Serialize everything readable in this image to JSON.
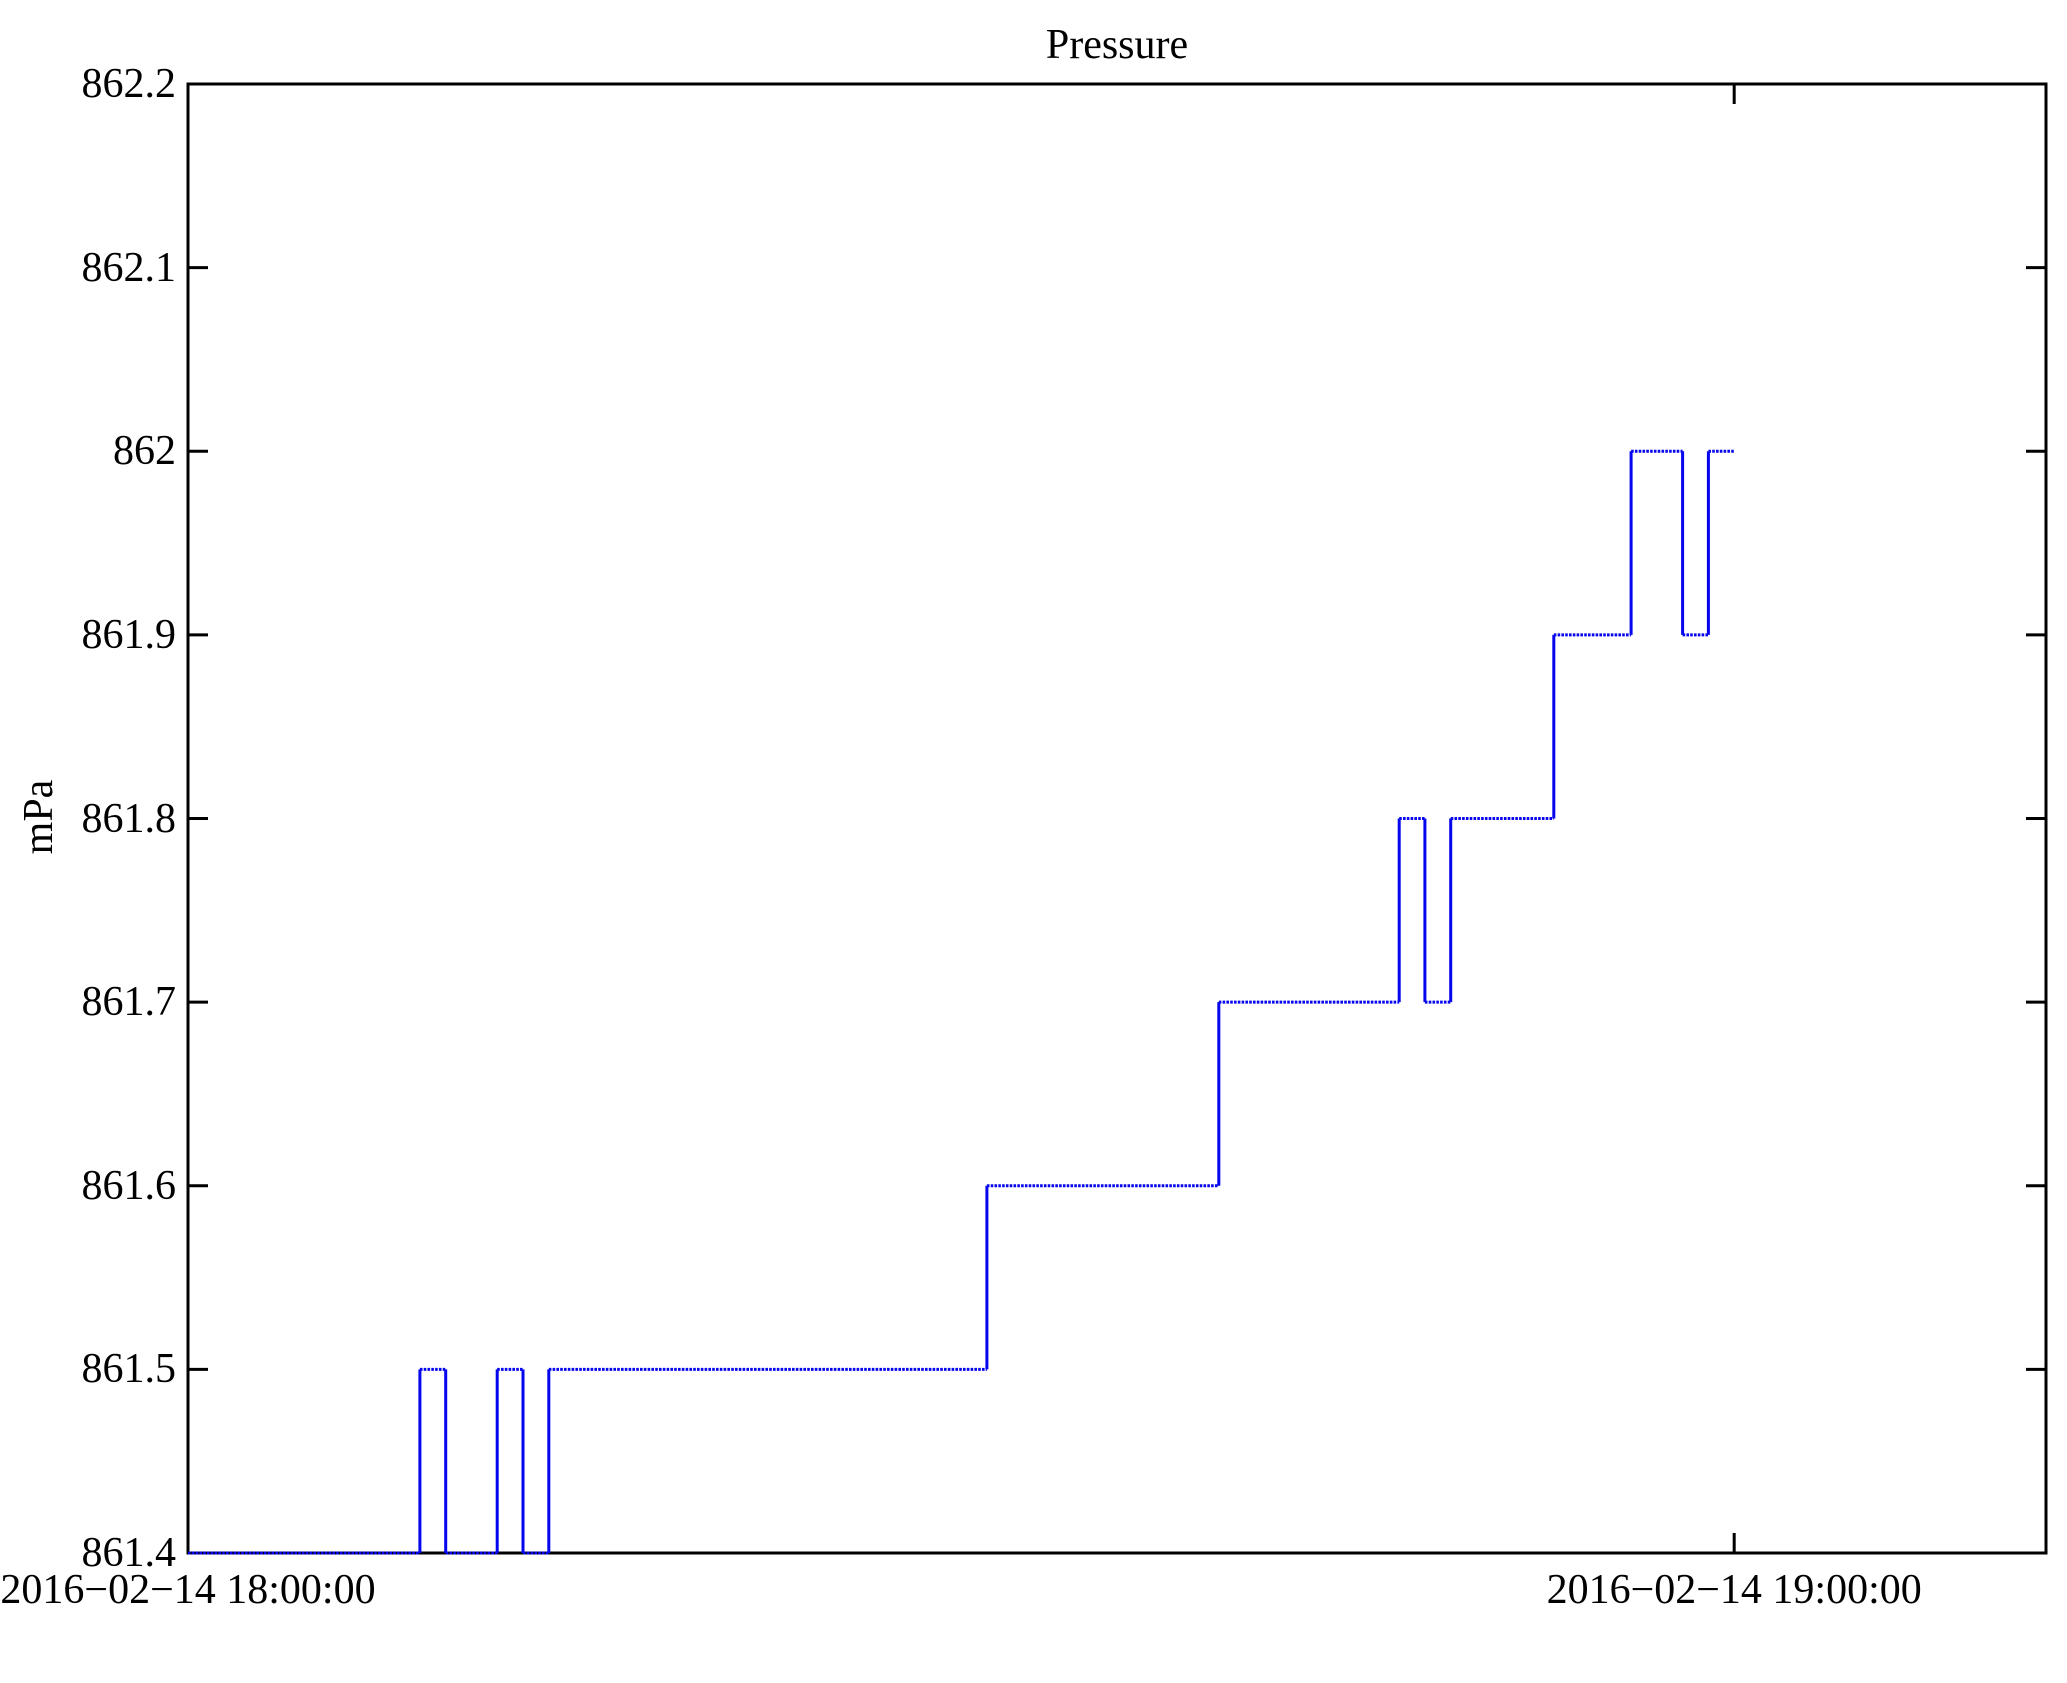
{
  "chart_data": {
    "type": "line",
    "subtype": "step-post",
    "title": "Pressure",
    "ylabel": "mPa",
    "xlabel": "",
    "ylim": [
      861.4,
      862.2
    ],
    "xlim_minutes_after_1800": [
      0,
      72.1
    ],
    "grid": false,
    "legend": "none",
    "line_color": "#0505ee",
    "frame_color": "#000000",
    "yticks": [
      {
        "label": "862.2",
        "value": 862.2
      },
      {
        "label": "862.1",
        "value": 862.1
      },
      {
        "label": "862",
        "value": 862.0
      },
      {
        "label": "861.9",
        "value": 861.9
      },
      {
        "label": "861.8",
        "value": 861.8
      },
      {
        "label": "861.7",
        "value": 861.7
      },
      {
        "label": "861.6",
        "value": 861.6
      },
      {
        "label": "861.5",
        "value": 861.5
      },
      {
        "label": "861.4",
        "value": 861.4
      }
    ],
    "xticks": [
      {
        "label": "2016−02−14 18:00:00",
        "minutes": 0
      },
      {
        "label": "2016−02−14 19:00:00",
        "minutes": 60
      }
    ],
    "series": [
      {
        "name": "Pressure",
        "unit": "mPa",
        "points": [
          {
            "time": "18:00",
            "t_min": 0,
            "mPa": 861.4
          },
          {
            "time": "18:09",
            "t_min": 9,
            "mPa": 861.5
          },
          {
            "time": "18:10",
            "t_min": 10,
            "mPa": 861.4
          },
          {
            "time": "18:12",
            "t_min": 12,
            "mPa": 861.5
          },
          {
            "time": "18:13",
            "t_min": 13,
            "mPa": 861.4
          },
          {
            "time": "18:14",
            "t_min": 14,
            "mPa": 861.5
          },
          {
            "time": "18:31",
            "t_min": 31,
            "mPa": 861.6
          },
          {
            "time": "18:40",
            "t_min": 40,
            "mPa": 861.7
          },
          {
            "time": "18:47",
            "t_min": 47,
            "mPa": 861.8
          },
          {
            "time": "18:48",
            "t_min": 48,
            "mPa": 861.7
          },
          {
            "time": "18:49",
            "t_min": 49,
            "mPa": 861.8
          },
          {
            "time": "18:53",
            "t_min": 53,
            "mPa": 861.9
          },
          {
            "time": "18:56",
            "t_min": 56,
            "mPa": 862.0
          },
          {
            "time": "18:58",
            "t_min": 58,
            "mPa": 861.9
          },
          {
            "time": "18:59",
            "t_min": 59,
            "mPa": 862.0
          },
          {
            "time": "19:00",
            "t_min": 60,
            "mPa": 862.0
          }
        ]
      }
    ]
  }
}
